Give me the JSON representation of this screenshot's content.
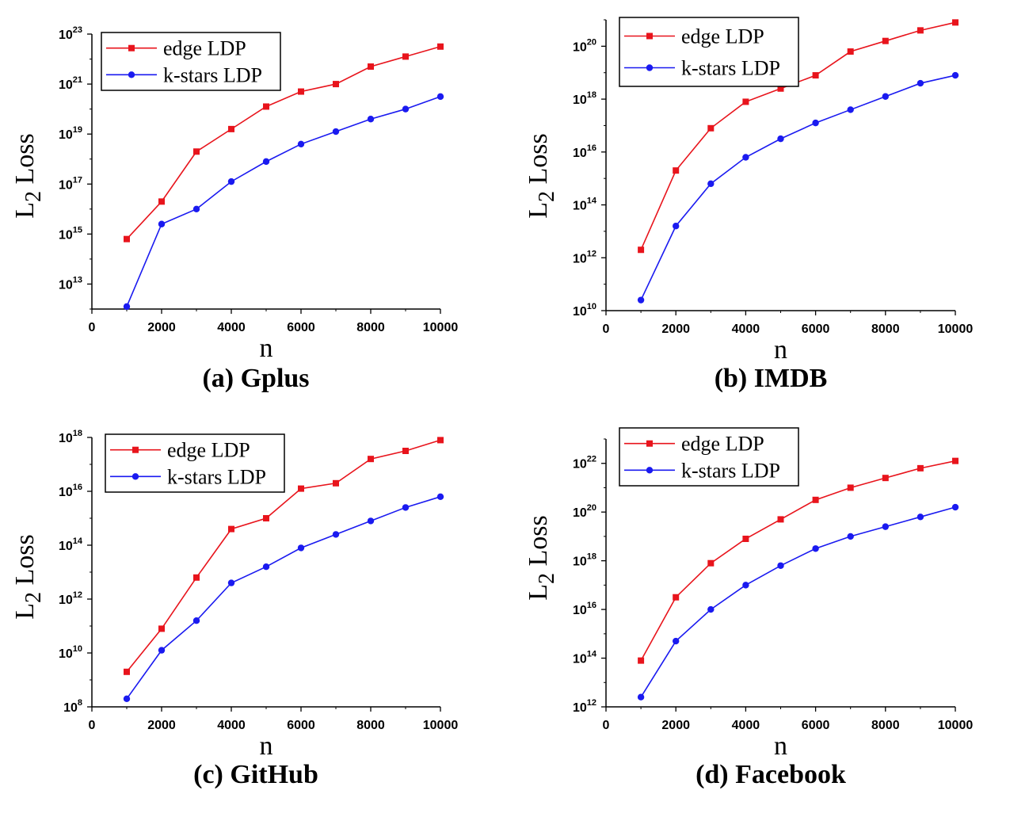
{
  "chart_data": [
    {
      "type": "line",
      "caption": "(a) Gplus",
      "xlabel": "n",
      "ylabel_main": "L",
      "ylabel_sub": "2",
      "ylabel_rest": " Loss",
      "xlim": [
        0,
        10000
      ],
      "ylim_log10": [
        12,
        23
      ],
      "x_ticks": [
        "0",
        "2000",
        "4000",
        "6000",
        "8000",
        "10000"
      ],
      "x_tick_values": [
        0,
        2000,
        4000,
        6000,
        8000,
        10000
      ],
      "y_ticks": [
        {
          "base": "10",
          "exp": "13",
          "value": 13
        },
        {
          "base": "10",
          "exp": "15",
          "value": 15
        },
        {
          "base": "10",
          "exp": "17",
          "value": 17
        },
        {
          "base": "10",
          "exp": "19",
          "value": 19
        },
        {
          "base": "10",
          "exp": "21",
          "value": 21
        },
        {
          "base": "10",
          "exp": "23",
          "value": 23
        }
      ],
      "x": [
        1000,
        2000,
        3000,
        4000,
        5000,
        6000,
        7000,
        8000,
        9000,
        10000
      ],
      "series": [
        {
          "name": "edge LDP",
          "color": "#e8141c",
          "marker": "square",
          "log10_values": [
            14.8,
            16.3,
            18.3,
            19.2,
            20.1,
            20.7,
            21.0,
            21.7,
            22.1,
            22.5
          ]
        },
        {
          "name": "k-stars LDP",
          "color": "#1a1af0",
          "marker": "circle",
          "log10_values": [
            12.1,
            15.4,
            16.0,
            17.1,
            17.9,
            18.6,
            19.1,
            19.6,
            20.0,
            20.5
          ]
        }
      ],
      "legend_position": "top-left"
    },
    {
      "type": "line",
      "caption": "(b) IMDB",
      "xlabel": "n",
      "ylabel_main": "L",
      "ylabel_sub": "2",
      "ylabel_rest": " Loss",
      "xlim": [
        0,
        10000
      ],
      "ylim_log10": [
        10,
        21
      ],
      "x_ticks": [
        "0",
        "2000",
        "4000",
        "6000",
        "8000",
        "10000"
      ],
      "x_tick_values": [
        0,
        2000,
        4000,
        6000,
        8000,
        10000
      ],
      "y_ticks": [
        {
          "base": "10",
          "exp": "10",
          "value": 10
        },
        {
          "base": "10",
          "exp": "12",
          "value": 12
        },
        {
          "base": "10",
          "exp": "14",
          "value": 14
        },
        {
          "base": "10",
          "exp": "16",
          "value": 16
        },
        {
          "base": "10",
          "exp": "18",
          "value": 18
        },
        {
          "base": "10",
          "exp": "20",
          "value": 20
        }
      ],
      "x": [
        1000,
        2000,
        3000,
        4000,
        5000,
        6000,
        7000,
        8000,
        9000,
        10000
      ],
      "series": [
        {
          "name": "edge LDP",
          "color": "#e8141c",
          "marker": "square",
          "log10_values": [
            12.3,
            15.3,
            16.9,
            17.9,
            18.4,
            18.9,
            19.8,
            20.2,
            20.6,
            20.9
          ]
        },
        {
          "name": "k-stars LDP",
          "color": "#1a1af0",
          "marker": "circle",
          "log10_values": [
            10.4,
            13.2,
            14.8,
            15.8,
            16.5,
            17.1,
            17.6,
            18.1,
            18.6,
            18.9
          ]
        }
      ],
      "legend_position": "top-left"
    },
    {
      "type": "line",
      "caption": "(c) GitHub",
      "xlabel": "n",
      "ylabel_main": "L",
      "ylabel_sub": "2",
      "ylabel_rest": " Loss",
      "xlim": [
        0,
        10000
      ],
      "ylim_log10": [
        8,
        18
      ],
      "x_ticks": [
        "0",
        "2000",
        "4000",
        "6000",
        "8000",
        "10000"
      ],
      "x_tick_values": [
        0,
        2000,
        4000,
        6000,
        8000,
        10000
      ],
      "y_ticks": [
        {
          "base": "10",
          "exp": "8",
          "value": 8
        },
        {
          "base": "10",
          "exp": "10",
          "value": 10
        },
        {
          "base": "10",
          "exp": "12",
          "value": 12
        },
        {
          "base": "10",
          "exp": "14",
          "value": 14
        },
        {
          "base": "10",
          "exp": "16",
          "value": 16
        },
        {
          "base": "10",
          "exp": "18",
          "value": 18
        }
      ],
      "x": [
        1000,
        2000,
        3000,
        4000,
        5000,
        6000,
        7000,
        8000,
        9000,
        10000
      ],
      "series": [
        {
          "name": "edge LDP",
          "color": "#e8141c",
          "marker": "square",
          "log10_values": [
            9.3,
            10.9,
            12.8,
            14.6,
            15.0,
            16.1,
            16.3,
            17.2,
            17.5,
            17.9
          ]
        },
        {
          "name": "k-stars LDP",
          "color": "#1a1af0",
          "marker": "circle",
          "log10_values": [
            8.3,
            10.1,
            11.2,
            12.6,
            13.2,
            13.9,
            14.4,
            14.9,
            15.4,
            15.8
          ]
        }
      ],
      "legend_position": "top-left"
    },
    {
      "type": "line",
      "caption": "(d) Facebook",
      "xlabel": "n",
      "ylabel_main": "L",
      "ylabel_sub": "2",
      "ylabel_rest": " Loss",
      "xlim": [
        0,
        10000
      ],
      "ylim_log10": [
        12,
        23
      ],
      "x_ticks": [
        "0",
        "2000",
        "4000",
        "6000",
        "8000",
        "10000"
      ],
      "x_tick_values": [
        0,
        2000,
        4000,
        6000,
        8000,
        10000
      ],
      "y_ticks": [
        {
          "base": "10",
          "exp": "12",
          "value": 12
        },
        {
          "base": "10",
          "exp": "14",
          "value": 14
        },
        {
          "base": "10",
          "exp": "16",
          "value": 16
        },
        {
          "base": "10",
          "exp": "18",
          "value": 18
        },
        {
          "base": "10",
          "exp": "20",
          "value": 20
        },
        {
          "base": "10",
          "exp": "22",
          "value": 22
        }
      ],
      "x": [
        1000,
        2000,
        3000,
        4000,
        5000,
        6000,
        7000,
        8000,
        9000,
        10000
      ],
      "series": [
        {
          "name": "edge LDP",
          "color": "#e8141c",
          "marker": "square",
          "log10_values": [
            13.9,
            16.5,
            17.9,
            18.9,
            19.7,
            20.5,
            21.0,
            21.4,
            21.8,
            22.1
          ]
        },
        {
          "name": "k-stars LDP",
          "color": "#1a1af0",
          "marker": "circle",
          "log10_values": [
            12.4,
            14.7,
            16.0,
            17.0,
            17.8,
            18.5,
            19.0,
            19.4,
            19.8,
            20.2
          ]
        }
      ],
      "legend_position": "top-left"
    }
  ]
}
